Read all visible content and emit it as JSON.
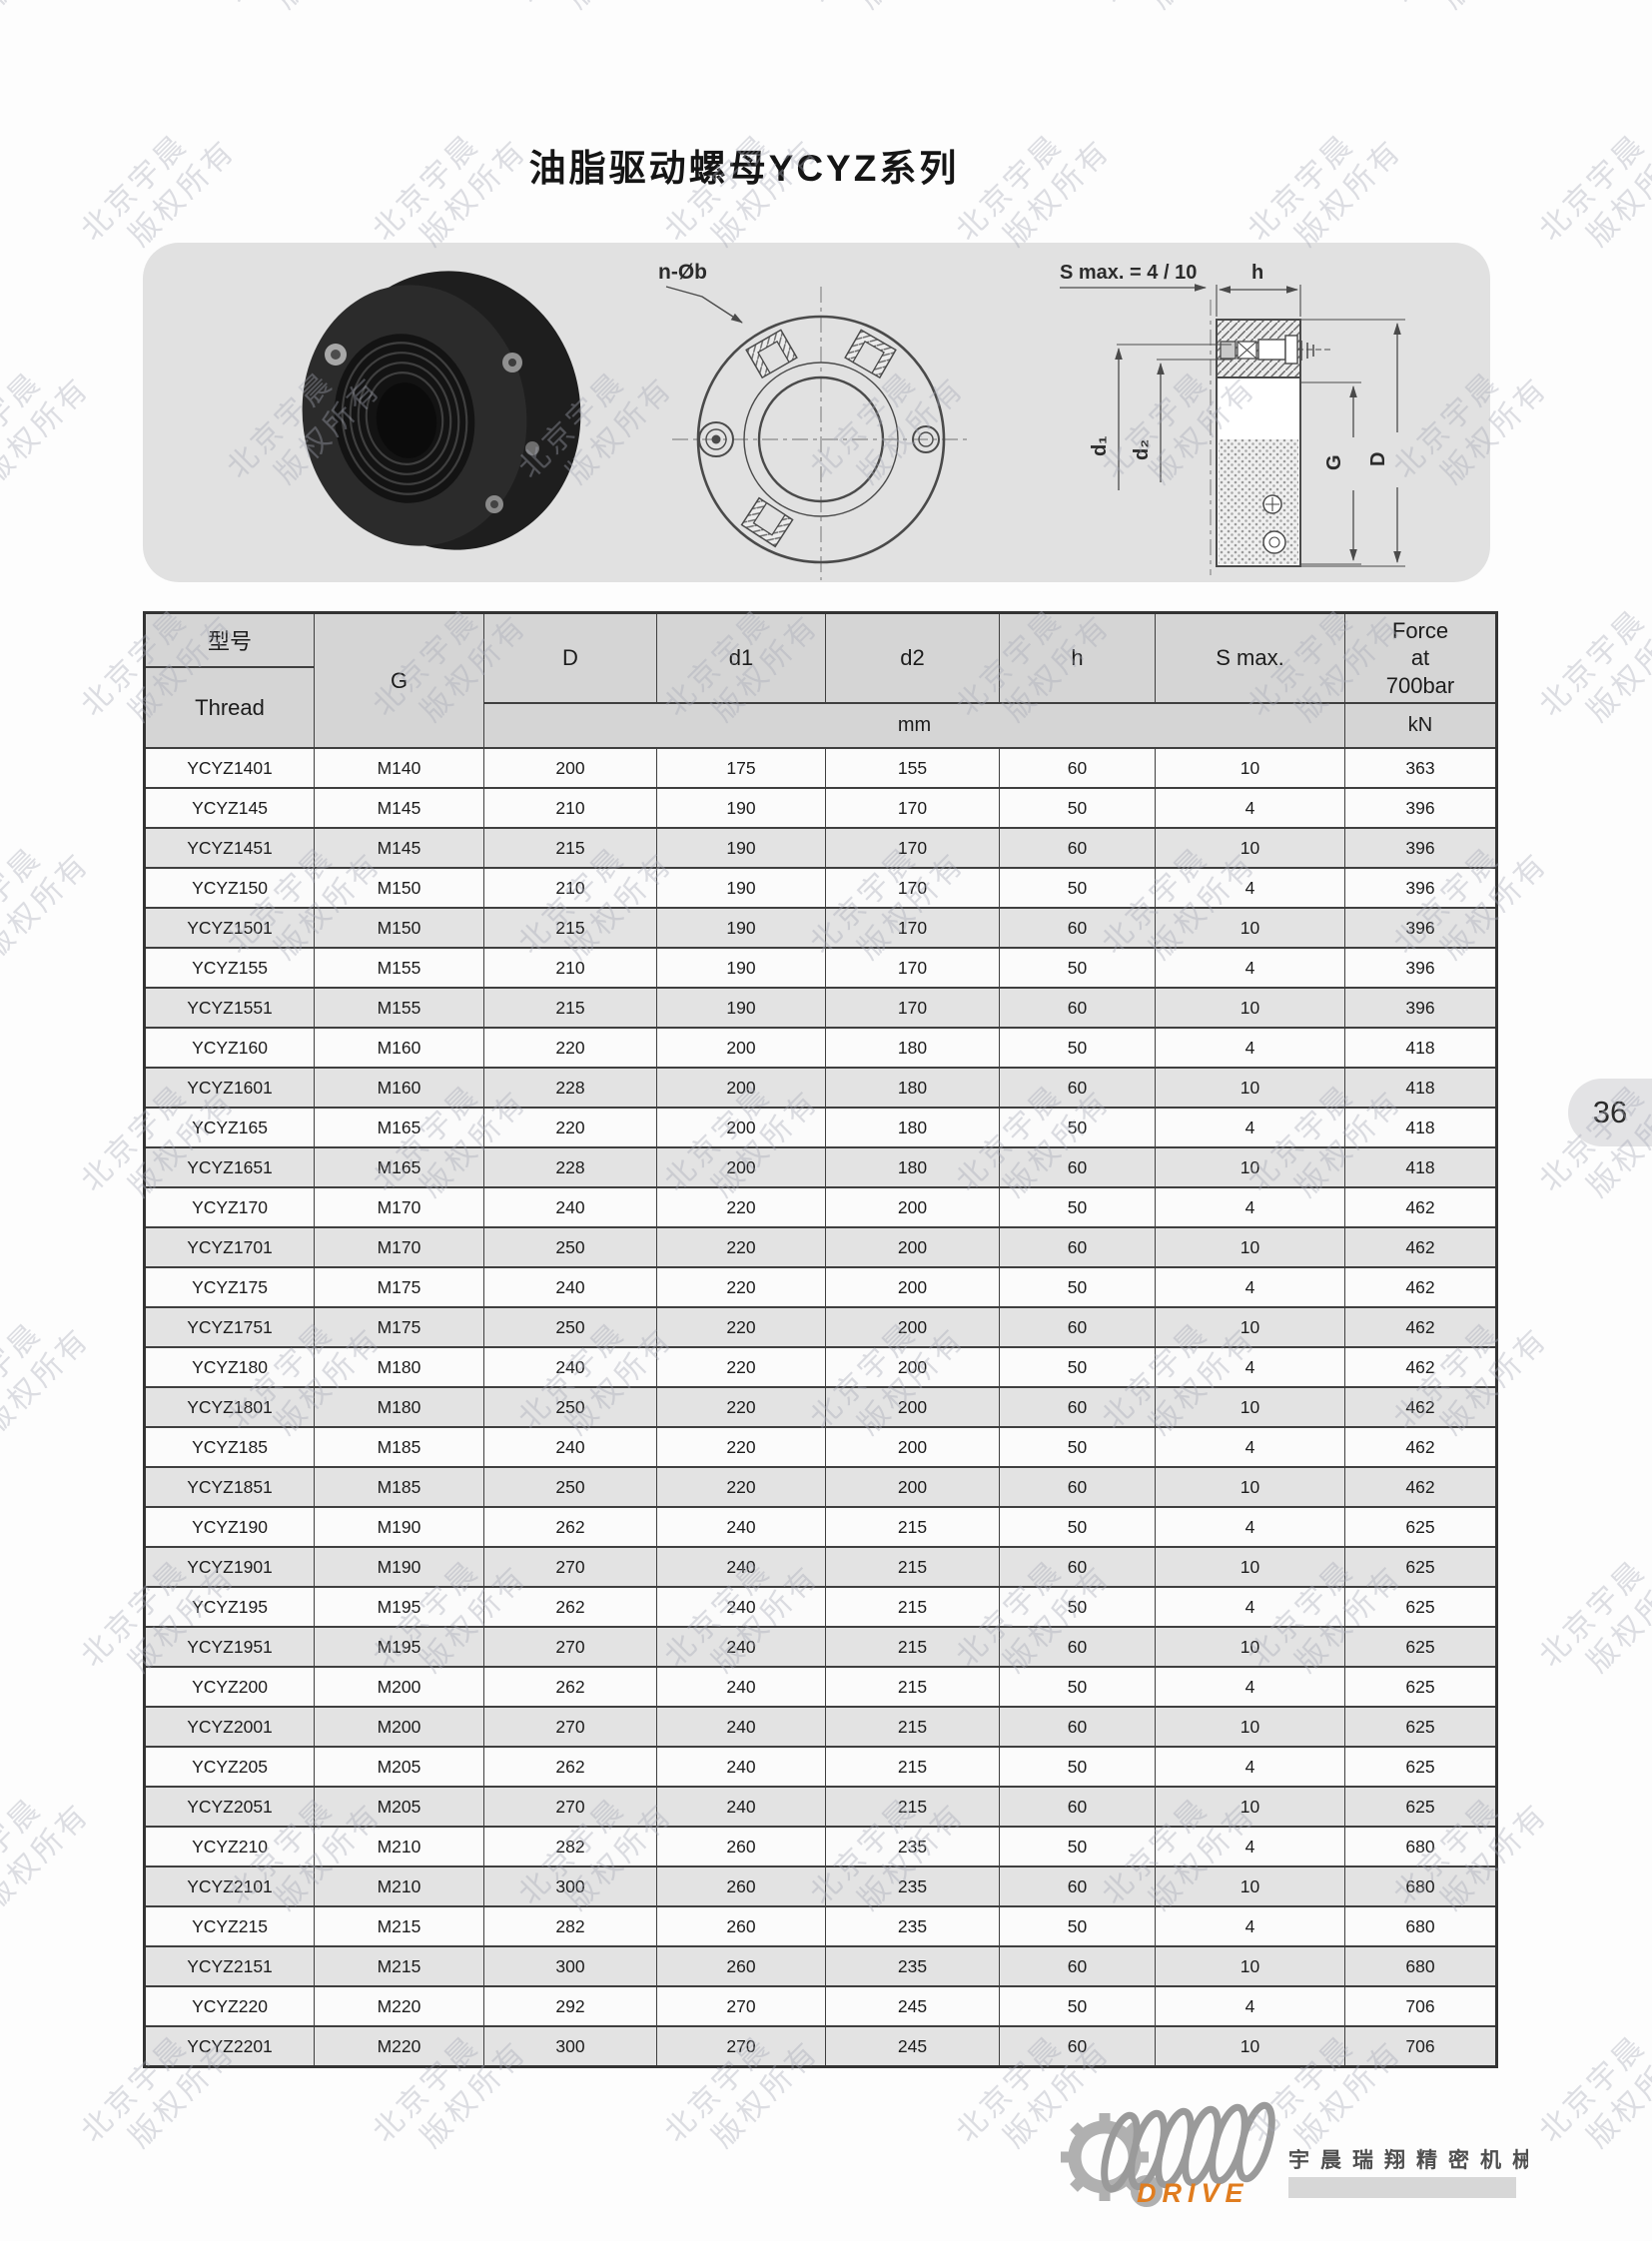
{
  "page": {
    "title": "油脂驱动螺母YCYZ系列",
    "page_number": "36"
  },
  "watermark": {
    "line1": "北京宇晨",
    "line2": "版权所有"
  },
  "hero": {
    "front_view_label": "n-Øb",
    "section_labels": {
      "s_max": "S max. = 4 / 10",
      "h": "h",
      "d1": "d₁",
      "d2": "d₂",
      "g": "G",
      "d": "D"
    }
  },
  "table": {
    "header": {
      "model_cn": "型号",
      "model_en": "Thread",
      "g": "G",
      "d": "D",
      "d1": "d1",
      "d2": "d2",
      "h": "h",
      "s_max": "S max.",
      "force": "Force\nat\n700bar",
      "unit_mm": "mm",
      "unit_kn": "kN"
    },
    "rows": [
      [
        "YCYZ1401",
        "M140",
        "200",
        "175",
        "155",
        "60",
        "10",
        "363"
      ],
      [
        "YCYZ145",
        "M145",
        "210",
        "190",
        "170",
        "50",
        "4",
        "396"
      ],
      [
        "YCYZ1451",
        "M145",
        "215",
        "190",
        "170",
        "60",
        "10",
        "396"
      ],
      [
        "YCYZ150",
        "M150",
        "210",
        "190",
        "170",
        "50",
        "4",
        "396"
      ],
      [
        "YCYZ1501",
        "M150",
        "215",
        "190",
        "170",
        "60",
        "10",
        "396"
      ],
      [
        "YCYZ155",
        "M155",
        "210",
        "190",
        "170",
        "50",
        "4",
        "396"
      ],
      [
        "YCYZ1551",
        "M155",
        "215",
        "190",
        "170",
        "60",
        "10",
        "396"
      ],
      [
        "YCYZ160",
        "M160",
        "220",
        "200",
        "180",
        "50",
        "4",
        "418"
      ],
      [
        "YCYZ1601",
        "M160",
        "228",
        "200",
        "180",
        "60",
        "10",
        "418"
      ],
      [
        "YCYZ165",
        "M165",
        "220",
        "200",
        "180",
        "50",
        "4",
        "418"
      ],
      [
        "YCYZ1651",
        "M165",
        "228",
        "200",
        "180",
        "60",
        "10",
        "418"
      ],
      [
        "YCYZ170",
        "M170",
        "240",
        "220",
        "200",
        "50",
        "4",
        "462"
      ],
      [
        "YCYZ1701",
        "M170",
        "250",
        "220",
        "200",
        "60",
        "10",
        "462"
      ],
      [
        "YCYZ175",
        "M175",
        "240",
        "220",
        "200",
        "50",
        "4",
        "462"
      ],
      [
        "YCYZ1751",
        "M175",
        "250",
        "220",
        "200",
        "60",
        "10",
        "462"
      ],
      [
        "YCYZ180",
        "M180",
        "240",
        "220",
        "200",
        "50",
        "4",
        "462"
      ],
      [
        "YCYZ1801",
        "M180",
        "250",
        "220",
        "200",
        "60",
        "10",
        "462"
      ],
      [
        "YCYZ185",
        "M185",
        "240",
        "220",
        "200",
        "50",
        "4",
        "462"
      ],
      [
        "YCYZ1851",
        "M185",
        "250",
        "220",
        "200",
        "60",
        "10",
        "462"
      ],
      [
        "YCYZ190",
        "M190",
        "262",
        "240",
        "215",
        "50",
        "4",
        "625"
      ],
      [
        "YCYZ1901",
        "M190",
        "270",
        "240",
        "215",
        "60",
        "10",
        "625"
      ],
      [
        "YCYZ195",
        "M195",
        "262",
        "240",
        "215",
        "50",
        "4",
        "625"
      ],
      [
        "YCYZ1951",
        "M195",
        "270",
        "240",
        "215",
        "60",
        "10",
        "625"
      ],
      [
        "YCYZ200",
        "M200",
        "262",
        "240",
        "215",
        "50",
        "4",
        "625"
      ],
      [
        "YCYZ2001",
        "M200",
        "270",
        "240",
        "215",
        "60",
        "10",
        "625"
      ],
      [
        "YCYZ205",
        "M205",
        "262",
        "240",
        "215",
        "50",
        "4",
        "625"
      ],
      [
        "YCYZ2051",
        "M205",
        "270",
        "240",
        "215",
        "60",
        "10",
        "625"
      ],
      [
        "YCYZ210",
        "M210",
        "282",
        "260",
        "235",
        "50",
        "4",
        "680"
      ],
      [
        "YCYZ2101",
        "M210",
        "300",
        "260",
        "235",
        "60",
        "10",
        "680"
      ],
      [
        "YCYZ215",
        "M215",
        "282",
        "260",
        "235",
        "50",
        "4",
        "680"
      ],
      [
        "YCYZ2151",
        "M215",
        "300",
        "260",
        "235",
        "60",
        "10",
        "680"
      ],
      [
        "YCYZ220",
        "M220",
        "292",
        "270",
        "245",
        "50",
        "4",
        "706"
      ],
      [
        "YCYZ2201",
        "M220",
        "300",
        "270",
        "245",
        "60",
        "10",
        "706"
      ]
    ]
  },
  "footer": {
    "drive": "DRIVE",
    "company": "宇晨瑞翔精密机械"
  },
  "colors": {
    "accent_orange": "#e07c1e",
    "panel_gray": "#e1e1e1",
    "header_gray": "#d5d5d5",
    "row_alt_gray": "#e3e3e3",
    "border_dark": "#3f3f3f",
    "watermark_gray": "#a6a8b6"
  }
}
